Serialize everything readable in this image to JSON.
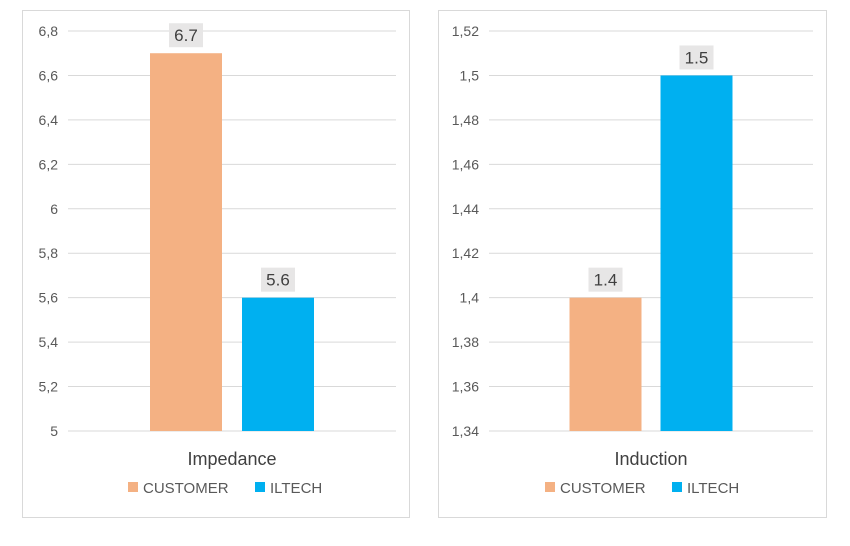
{
  "chart_data": [
    {
      "type": "bar",
      "categories": [
        "Impedance"
      ],
      "series": [
        {
          "name": "CUSTOMER",
          "values": [
            6.7
          ]
        },
        {
          "name": "ILTECH",
          "values": [
            5.6
          ]
        }
      ],
      "ylim": [
        5,
        6.8
      ],
      "yticks": [
        "5",
        "5,2",
        "5,4",
        "5,6",
        "5,8",
        "6",
        "6,2",
        "6,4",
        "6,6",
        "6,8"
      ],
      "data_labels": [
        "6.7",
        "5.6"
      ],
      "legend": "bottom",
      "grid": true
    },
    {
      "type": "bar",
      "categories": [
        "Induction"
      ],
      "series": [
        {
          "name": "CUSTOMER",
          "values": [
            1.4
          ]
        },
        {
          "name": "ILTECH",
          "values": [
            1.5
          ]
        }
      ],
      "ylim": [
        1.34,
        1.52
      ],
      "yticks": [
        "1,34",
        "1,36",
        "1,38",
        "1,4",
        "1,42",
        "1,44",
        "1,46",
        "1,48",
        "1,5",
        "1,52"
      ],
      "data_labels": [
        "1.4",
        "1.5"
      ],
      "legend": "bottom",
      "grid": true
    }
  ],
  "colors": {
    "customer": "#F4B183",
    "iltech": "#00B0F0",
    "grid": "#d9d9d9",
    "label_bg": "#e7e6e6"
  }
}
